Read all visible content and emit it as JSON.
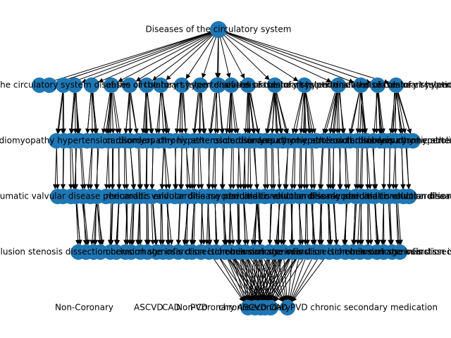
{
  "diagram": {
    "root_label": "Diseases of the circulatory system",
    "node_color": "#1f77b4",
    "edge_color": "#000000",
    "level_counts": [
      1,
      21,
      64,
      52,
      43,
      6
    ],
    "bottom_left_label": "Non-Coronary",
    "bottom_labels": [
      "Non-Coronary",
      "ASCVD",
      "CAD",
      "PVD",
      "chronic",
      "secondary"
    ],
    "overprinted_rows": [
      "of the circulatory system diseases of the heart hypertensive diseases of circulation",
      "cardiomyopathy hypertension disorders chronic atherosclerosis aneurysm embolism thrombosis",
      "rheumatic valvular disease pericarditis endocarditis myocarditis conduction disorders",
      "occlusion stenosis dissection hemorrhage infarction ischemia varicose veins",
      "Non-Coronary ASCVD CAD PVD chronic secondary medication"
    ]
  }
}
